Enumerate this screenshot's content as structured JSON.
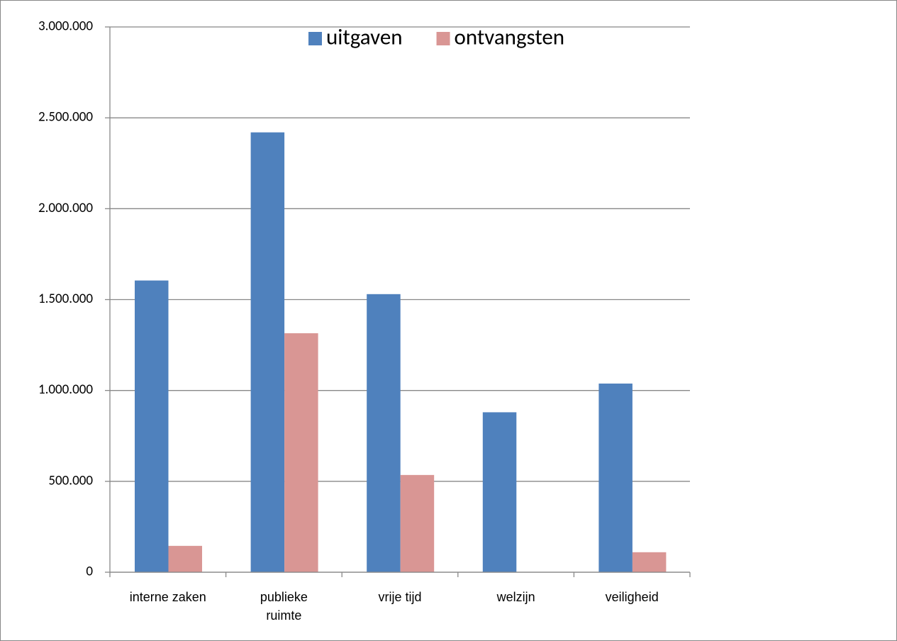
{
  "chart_data": {
    "type": "bar",
    "categories": [
      "interne zaken",
      "publieke ruimte",
      "vrije tijd",
      "welzijn",
      "veiligheid"
    ],
    "series": [
      {
        "name": "uitgaven",
        "color": "#4f81bd",
        "values": [
          1605000,
          2420000,
          1530000,
          880000,
          1038000
        ]
      },
      {
        "name": "ontvangsten",
        "color": "#d99694",
        "values": [
          145000,
          1315000,
          535000,
          0,
          110000
        ]
      }
    ],
    "ylim": [
      0,
      3000000
    ],
    "yticks": [
      0,
      {
        "value": 500000,
        "label": "500.000"
      },
      {
        "value": 1000000,
        "label": "1.000.000"
      },
      {
        "value": 1500000,
        "label": "1.500.000"
      },
      {
        "value": 2000000,
        "label": "2.000.000"
      },
      {
        "value": 2500000,
        "label": "2.500.000"
      },
      {
        "value": 3000000,
        "label": "3.000.000"
      }
    ],
    "grid": true,
    "legend": "top"
  }
}
